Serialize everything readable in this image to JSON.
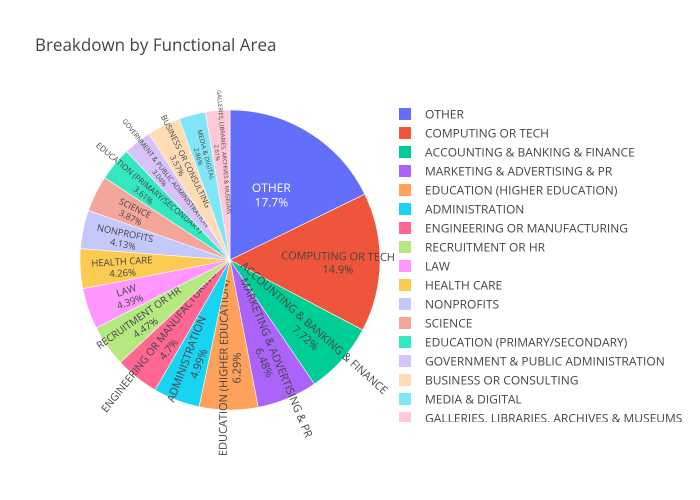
{
  "chart_data": {
    "type": "pie",
    "title": "Breakdown by Functional Area",
    "legend_position": "right",
    "slices": [
      {
        "label": "OTHER",
        "value": 17.7,
        "display": "17.7%",
        "color": "#636efa"
      },
      {
        "label": "COMPUTING OR TECH",
        "value": 14.9,
        "display": "14.9%",
        "color": "#ef553b"
      },
      {
        "label": "ACCOUNTING & BANKING & FINANCE",
        "value": 7.72,
        "display": "7.72%",
        "color": "#00cc96"
      },
      {
        "label": "MARKETING & ADVERTISING & PR",
        "value": 6.48,
        "display": "6.48%",
        "color": "#ab63fa"
      },
      {
        "label": "EDUCATION (HIGHER EDUCATION)",
        "value": 6.29,
        "display": "6.29%",
        "color": "#ffa15a"
      },
      {
        "label": "ADMINISTRATION",
        "value": 4.99,
        "display": "4.99%",
        "color": "#19d3f3"
      },
      {
        "label": "ENGINEERING OR MANUFACTURING",
        "value": 4.7,
        "display": "4.7%",
        "color": "#ff6692"
      },
      {
        "label": "RECRUITMENT OR HR",
        "value": 4.47,
        "display": "4.47%",
        "color": "#b6e880"
      },
      {
        "label": "LAW",
        "value": 4.39,
        "display": "4.39%",
        "color": "#ff97ff"
      },
      {
        "label": "HEALTH CARE",
        "value": 4.26,
        "display": "4.26%",
        "color": "#fecb52"
      },
      {
        "label": "NONPROFITS",
        "value": 4.13,
        "display": "4.13%",
        "color": "#c5c8fa"
      },
      {
        "label": "SCIENCE",
        "value": 3.87,
        "display": "3.87%",
        "color": "#f4a69a"
      },
      {
        "label": "EDUCATION (PRIMARY/SECONDARY)",
        "value": 3.61,
        "display": "3.61%",
        "color": "#33e8c0"
      },
      {
        "label": "GOVERNMENT & PUBLIC ADMINISTRATION",
        "value": 3.04,
        "display": "3.04%",
        "color": "#d7c2f9"
      },
      {
        "label": "BUSINESS OR CONSULTING",
        "value": 3.57,
        "display": "3.57%",
        "color": "#ffdcb5"
      },
      {
        "label": "MEDIA & DIGITAL",
        "value": 2.86,
        "display": "2.86%",
        "color": "#80e6f7"
      },
      {
        "label": "GALLERIES, LIBRARIES, ARCHIVES & MUSEUMS",
        "value": 2.61,
        "display": "2.61%",
        "color": "#ffc9d8"
      }
    ]
  }
}
